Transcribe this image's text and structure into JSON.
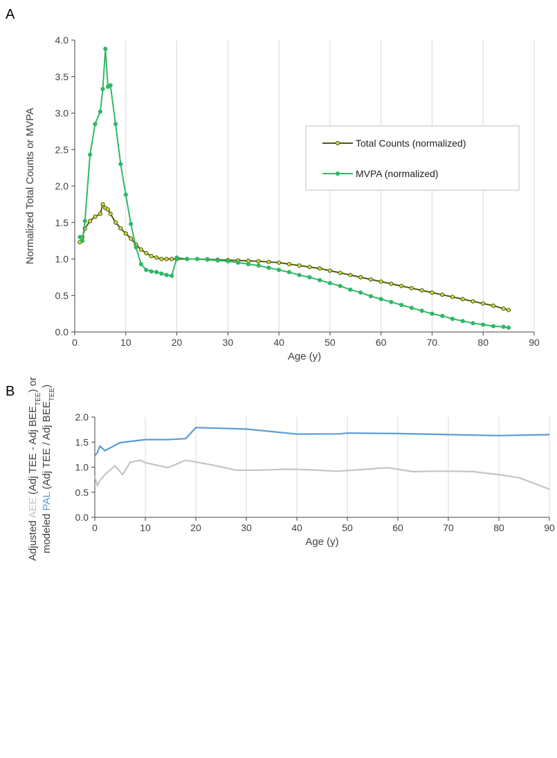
{
  "panels": {
    "a_label": "A",
    "b_label": "B"
  },
  "chart_data": [
    {
      "type": "line",
      "panel": "A",
      "xlabel": "Age (y)",
      "ylabel": "Normalized Total Counts or MVPA",
      "xlim": [
        0,
        90
      ],
      "ylim": [
        0,
        4
      ],
      "xticks": [
        0,
        10,
        20,
        30,
        40,
        50,
        60,
        70,
        80,
        90
      ],
      "yticks": [
        "0.0",
        "0.5",
        "1.0",
        "1.5",
        "2.0",
        "2.5",
        "3.0",
        "3.5",
        "4.0"
      ],
      "grid": "vertical",
      "legend_position": "right",
      "series": [
        {
          "name": "Total Counts (normalized)",
          "color": "#4a5a10",
          "marker_fill": "#d8d840",
          "x": [
            1,
            1.5,
            2,
            3,
            4,
            5,
            5.5,
            6,
            6.5,
            7,
            8,
            9,
            10,
            11,
            12,
            13,
            14,
            15,
            16,
            17,
            18,
            19,
            20,
            22,
            24,
            26,
            28,
            30,
            32,
            34,
            36,
            38,
            40,
            42,
            44,
            46,
            48,
            50,
            52,
            54,
            56,
            58,
            60,
            62,
            64,
            66,
            68,
            70,
            72,
            74,
            76,
            78,
            80,
            82,
            84,
            85
          ],
          "values": [
            1.23,
            1.3,
            1.42,
            1.52,
            1.58,
            1.62,
            1.75,
            1.7,
            1.68,
            1.62,
            1.5,
            1.42,
            1.35,
            1.28,
            1.2,
            1.13,
            1.08,
            1.04,
            1.02,
            1.0,
            1.0,
            1.0,
            1.0,
            1.0,
            1.0,
            0.995,
            0.99,
            0.985,
            0.98,
            0.975,
            0.97,
            0.96,
            0.95,
            0.93,
            0.91,
            0.89,
            0.87,
            0.84,
            0.81,
            0.78,
            0.75,
            0.72,
            0.69,
            0.66,
            0.63,
            0.6,
            0.57,
            0.54,
            0.51,
            0.48,
            0.45,
            0.42,
            0.39,
            0.36,
            0.32,
            0.3
          ]
        },
        {
          "name": "MVPA (normalized)",
          "color": "#2eb866",
          "marker_fill": "#2eb866",
          "x": [
            1,
            1.5,
            2,
            3,
            4,
            5,
            5.5,
            6,
            6.5,
            7,
            8,
            9,
            10,
            11,
            12,
            13,
            14,
            15,
            16,
            17,
            18,
            19,
            20,
            22,
            24,
            26,
            28,
            30,
            32,
            34,
            36,
            38,
            40,
            42,
            44,
            46,
            48,
            50,
            52,
            54,
            56,
            58,
            60,
            62,
            64,
            66,
            68,
            70,
            72,
            74,
            76,
            78,
            80,
            82,
            84,
            85
          ],
          "values": [
            1.3,
            1.25,
            1.52,
            2.43,
            2.85,
            3.02,
            3.33,
            3.88,
            3.36,
            3.38,
            2.85,
            2.3,
            1.88,
            1.48,
            1.16,
            0.93,
            0.85,
            0.83,
            0.82,
            0.8,
            0.78,
            0.77,
            1.02,
            1.0,
            1.0,
            0.99,
            0.98,
            0.97,
            0.95,
            0.93,
            0.91,
            0.88,
            0.85,
            0.82,
            0.78,
            0.75,
            0.71,
            0.67,
            0.63,
            0.58,
            0.54,
            0.49,
            0.45,
            0.41,
            0.37,
            0.33,
            0.29,
            0.25,
            0.22,
            0.18,
            0.15,
            0.12,
            0.1,
            0.08,
            0.07,
            0.06
          ]
        }
      ]
    },
    {
      "type": "line",
      "panel": "B",
      "xlabel": "Age (y)",
      "ylabel_parts": {
        "line1_a": "Adjusted ",
        "line1_b": "AEE",
        "line1_c": " (Adj TEE - Adj BEE",
        "line1_sub": "TEE",
        "line1_d": ") or",
        "line2_a": "modeled ",
        "line2_b": "PAL",
        "line2_c": " (Adj TEE / Adj BEE",
        "line2_sub": "TEE",
        "line2_d": ")"
      },
      "xlim": [
        0,
        90
      ],
      "ylim": [
        0,
        2
      ],
      "xticks": [
        0,
        10,
        20,
        30,
        40,
        50,
        60,
        70,
        80,
        90
      ],
      "yticks": [
        "0.0",
        "0.5",
        "1.0",
        "1.5",
        "2.0"
      ],
      "grid": "vertical",
      "series": [
        {
          "name": "PAL",
          "color": "#5b9bd5",
          "x": [
            0,
            0.5,
            1,
            2,
            5,
            10,
            14.5,
            18,
            20,
            30,
            40,
            48.5,
            50,
            60,
            70,
            80,
            90
          ],
          "values": [
            1.23,
            1.29,
            1.42,
            1.33,
            1.49,
            1.55,
            1.55,
            1.57,
            1.79,
            1.76,
            1.66,
            1.665,
            1.68,
            1.67,
            1.65,
            1.63,
            1.65
          ]
        },
        {
          "name": "AEE",
          "color": "#c4c4c4",
          "x": [
            0,
            0.5,
            1,
            2,
            4,
            5.5,
            7,
            9,
            10,
            14.5,
            18,
            23,
            28,
            32,
            38,
            42,
            48,
            54,
            58,
            63,
            67,
            71,
            75,
            80,
            84,
            90
          ],
          "values": [
            0.82,
            0.63,
            0.73,
            0.85,
            1.03,
            0.85,
            1.1,
            1.14,
            1.09,
            0.99,
            1.14,
            1.05,
            0.94,
            0.94,
            0.96,
            0.95,
            0.92,
            0.96,
            0.99,
            0.91,
            0.92,
            0.92,
            0.91,
            0.85,
            0.79,
            0.56
          ]
        }
      ]
    }
  ]
}
